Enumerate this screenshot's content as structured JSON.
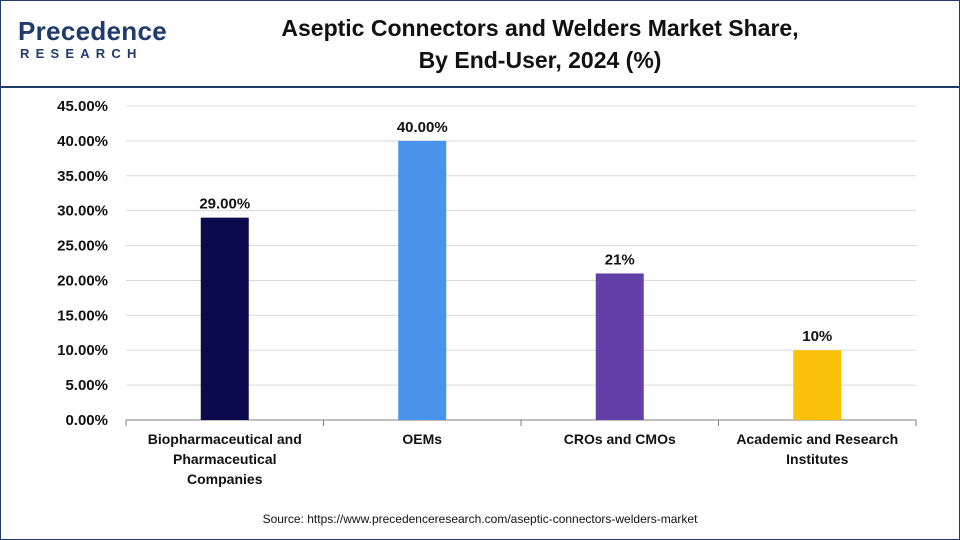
{
  "header": {
    "logo_main": "Precedence",
    "logo_sub": "RESEARCH",
    "title_line1": "Aseptic Connectors and Welders Market Share,",
    "title_line2": "By End-User, 2024 (%)"
  },
  "source": "Source: https://www.precedenceresearch.com/aseptic-connectors-welders-market",
  "colors": {
    "brand": "#1f3a6b",
    "grid": "#d9d9d9",
    "axis": "#7f7f7f"
  },
  "chart_data": {
    "type": "bar",
    "categories": [
      [
        "Biopharmaceutical and",
        "Pharmaceutical",
        "Companies"
      ],
      [
        "OEMs"
      ],
      [
        "CROs and CMOs"
      ],
      [
        "Academic and Research",
        "Institutes"
      ]
    ],
    "values": [
      29,
      40,
      21,
      10
    ],
    "data_labels": [
      "29.00%",
      "40.00%",
      "21%",
      "10%"
    ],
    "bar_colors": [
      "#0a0a4d",
      "#4a93ec",
      "#6340a8",
      "#fcc20a"
    ],
    "y_ticks": [
      "0.00%",
      "5.00%",
      "10.00%",
      "15.00%",
      "20.00%",
      "25.00%",
      "30.00%",
      "35.00%",
      "40.00%",
      "45.00%"
    ],
    "ylim": [
      0,
      45
    ],
    "grid": true,
    "title": "Aseptic Connectors and Welders Market Share, By End-User, 2024 (%)"
  }
}
